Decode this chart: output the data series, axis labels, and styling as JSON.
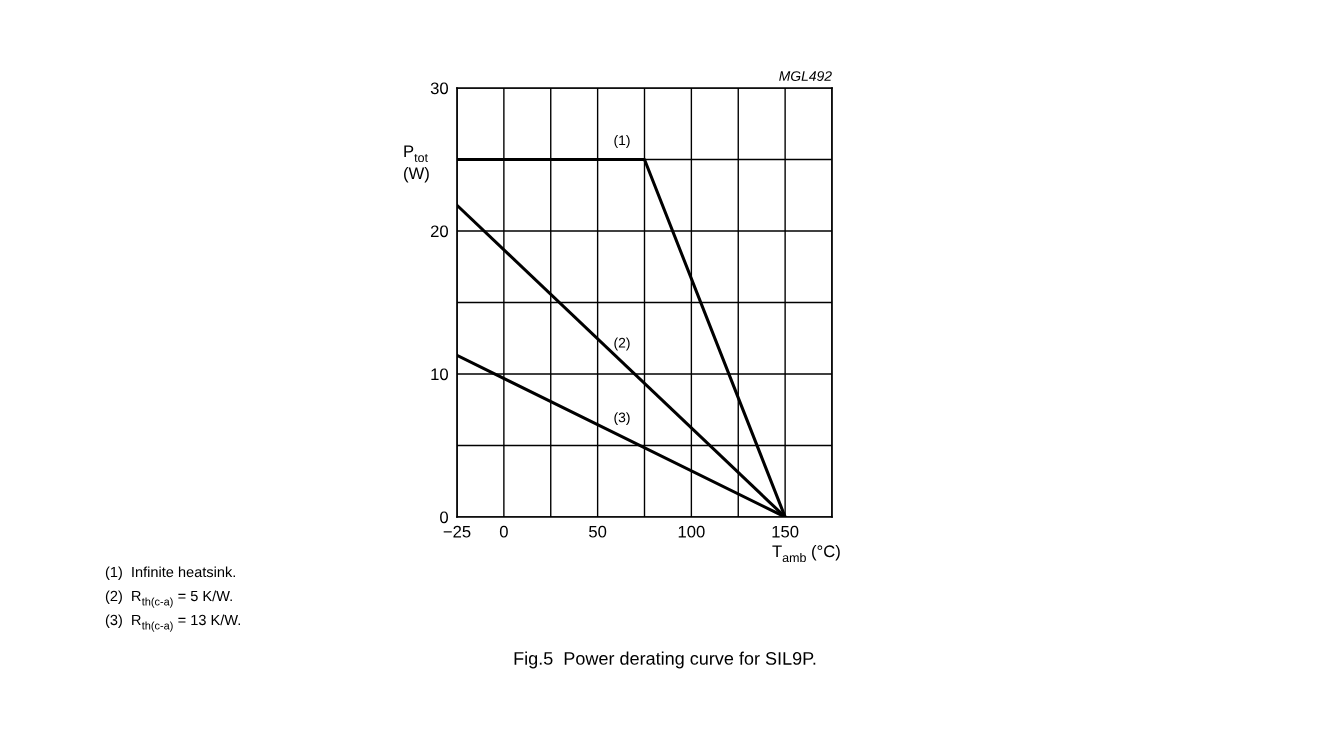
{
  "chart_data": {
    "type": "line",
    "title": "Fig.5  Power derating curve for SIL9P.",
    "xlabel": "T$_{amb}$ (°C)",
    "ylabel": "P$_{tot}$\n(W)",
    "series": [
      {
        "name": "(1)",
        "x": [
          -25,
          75,
          150
        ],
        "values": [
          25,
          25,
          0
        ],
        "color": "#000000"
      },
      {
        "name": "(2)",
        "x": [
          -25,
          150
        ],
        "values": [
          21.8,
          0
        ],
        "color": "#000000"
      },
      {
        "name": "(3)",
        "x": [
          -25,
          150
        ],
        "values": [
          11.3,
          0
        ],
        "color": "#000000"
      }
    ],
    "xlim": [
      -25,
      175
    ],
    "ylim": [
      0,
      30
    ],
    "xticks": [
      {
        "value": -25,
        "label": "−25"
      },
      0,
      {
        "value": 25,
        "label": null
      },
      50,
      {
        "value": 75,
        "label": null
      },
      100,
      {
        "value": 125,
        "label": null
      },
      150,
      {
        "value": 175,
        "label": null
      }
    ],
    "yticks": [
      0,
      {
        "value": 5,
        "label": null
      },
      10,
      {
        "value": 15,
        "label": null
      },
      20,
      {
        "value": 25,
        "label": null
      },
      30
    ],
    "grid": true,
    "marker": "none",
    "line_style": "solid",
    "annotations": [
      "MGL492",
      "(1)  Infinite heatsink.",
      "(2)  R$_{th(c-a)}$ = 5 K/W.",
      "(3)  R$_{th(c-a)}$ = 13 K/W."
    ]
  }
}
